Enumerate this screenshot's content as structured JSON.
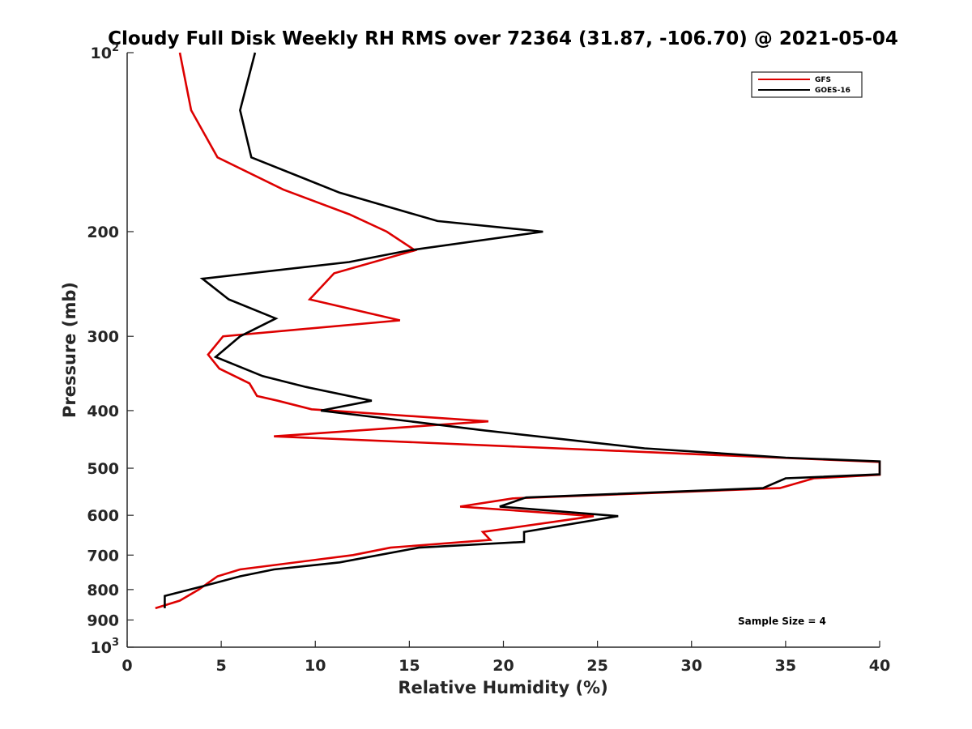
{
  "chart_data": {
    "type": "line",
    "title": "Cloudy Full Disk Weekly RH RMS over 72364 (31.87, -106.70) @ 2021-05-04",
    "xlabel": "Relative Humidity (%)",
    "ylabel": "Pressure (mb)",
    "xlim": [
      0,
      40
    ],
    "ylim": [
      100,
      1000
    ],
    "yscale": "log",
    "y_reversed": true,
    "grid": false,
    "x_ticks": [
      {
        "value": 0,
        "label": "0"
      },
      {
        "value": 5,
        "label": "5"
      },
      {
        "value": 10,
        "label": "10"
      },
      {
        "value": 15,
        "label": "15"
      },
      {
        "value": 20,
        "label": "20"
      },
      {
        "value": 25,
        "label": "25"
      },
      {
        "value": 30,
        "label": "30"
      },
      {
        "value": 35,
        "label": "35"
      },
      {
        "value": 40,
        "label": "40"
      }
    ],
    "y_ticks": [
      {
        "value": 100,
        "base": "10",
        "exp": "2"
      },
      {
        "value": 200,
        "label": "200"
      },
      {
        "value": 300,
        "label": "300"
      },
      {
        "value": 400,
        "label": "400"
      },
      {
        "value": 500,
        "label": "500"
      },
      {
        "value": 600,
        "label": "600"
      },
      {
        "value": 700,
        "label": "700"
      },
      {
        "value": 800,
        "label": "800"
      },
      {
        "value": 900,
        "label": "900"
      },
      {
        "value": 1000,
        "base": "10",
        "exp": "3"
      }
    ],
    "legend": {
      "position": "top-right"
    },
    "annotation": "Sample Size = 4",
    "series": [
      {
        "name": "GFS",
        "color": "#dd0000",
        "points": [
          [
            2.8,
            100
          ],
          [
            3.4,
            125
          ],
          [
            4.8,
            150
          ],
          [
            8.3,
            170
          ],
          [
            11.8,
            187
          ],
          [
            13.8,
            200
          ],
          [
            15.3,
            215
          ],
          [
            11.0,
            235
          ],
          [
            9.7,
            260
          ],
          [
            14.5,
            282
          ],
          [
            5.1,
            300
          ],
          [
            4.3,
            322
          ],
          [
            4.9,
            340
          ],
          [
            6.5,
            360
          ],
          [
            6.9,
            378
          ],
          [
            8.0,
            385
          ],
          [
            9.8,
            398
          ],
          [
            19.2,
            417
          ],
          [
            7.8,
            442
          ],
          [
            40.0,
            488
          ],
          [
            40.0,
            513
          ],
          [
            36.5,
            520
          ],
          [
            34.7,
            540
          ],
          [
            20.5,
            562
          ],
          [
            17.7,
            580
          ],
          [
            24.8,
            602
          ],
          [
            18.9,
            640
          ],
          [
            19.3,
            660
          ],
          [
            14.0,
            680
          ],
          [
            12.0,
            700
          ],
          [
            6.0,
            740
          ],
          [
            4.8,
            760
          ],
          [
            3.8,
            800
          ],
          [
            2.8,
            835
          ],
          [
            1.5,
            860
          ]
        ]
      },
      {
        "name": "GOES-16",
        "color": "#000000",
        "points": [
          [
            6.8,
            100
          ],
          [
            6.0,
            125
          ],
          [
            6.6,
            150
          ],
          [
            11.3,
            172
          ],
          [
            16.5,
            192
          ],
          [
            22.1,
            200
          ],
          [
            15.0,
            215
          ],
          [
            11.8,
            225
          ],
          [
            4.0,
            240
          ],
          [
            5.4,
            260
          ],
          [
            7.9,
            280
          ],
          [
            6.0,
            300
          ],
          [
            4.7,
            325
          ],
          [
            7.2,
            350
          ],
          [
            9.5,
            365
          ],
          [
            13.0,
            385
          ],
          [
            10.3,
            400
          ],
          [
            15.3,
            418
          ],
          [
            19.0,
            432
          ],
          [
            27.5,
            463
          ],
          [
            35.0,
            480
          ],
          [
            40.0,
            487
          ],
          [
            40.0,
            512
          ],
          [
            35.0,
            520
          ],
          [
            33.8,
            540
          ],
          [
            21.2,
            560
          ],
          [
            19.8,
            580
          ],
          [
            26.1,
            602
          ],
          [
            21.1,
            640
          ],
          [
            21.1,
            665
          ],
          [
            15.5,
            680
          ],
          [
            11.3,
            720
          ],
          [
            7.8,
            740
          ],
          [
            6.0,
            760
          ],
          [
            4.0,
            790
          ],
          [
            2.0,
            820
          ],
          [
            2.0,
            860
          ]
        ]
      }
    ]
  }
}
